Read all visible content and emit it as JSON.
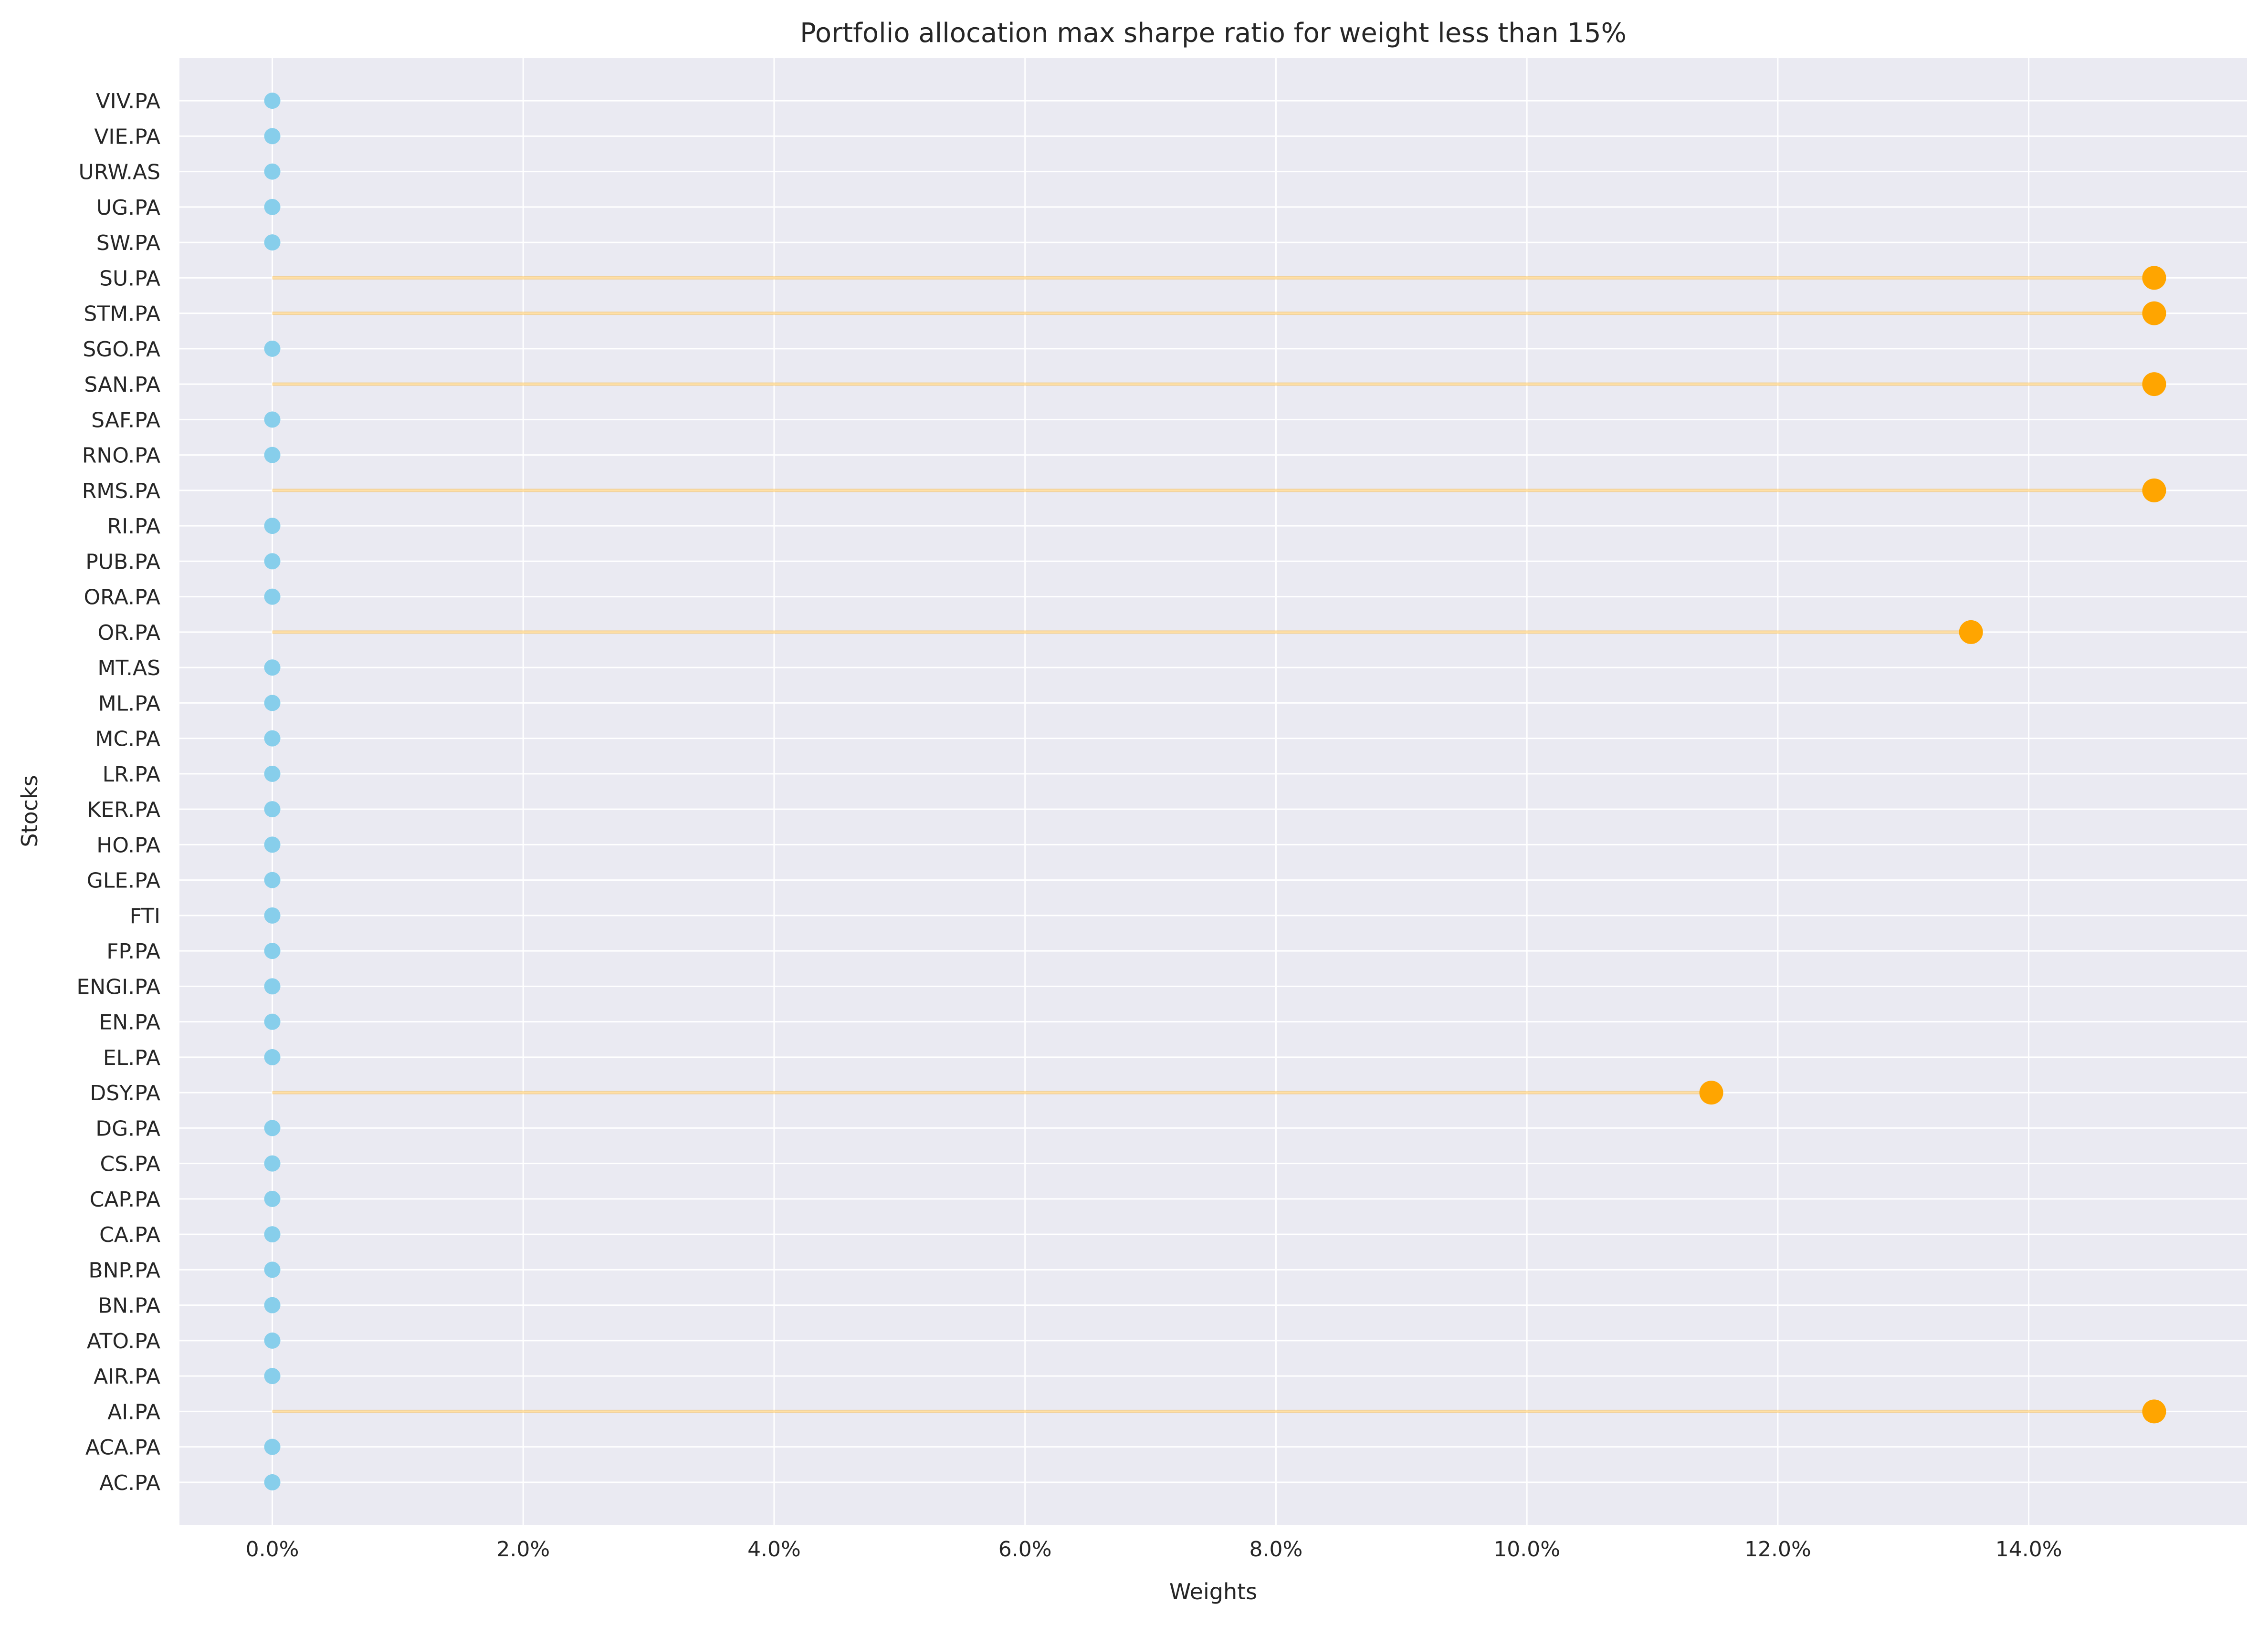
{
  "chart_data": {
    "type": "lollipop",
    "title": "Portfolio allocation max sharpe ratio for weight less than 15%",
    "xlabel": "Weights",
    "ylabel": "Stocks",
    "x_format": "percent",
    "xlim": [
      -0.0074,
      0.1574
    ],
    "x_ticks": [
      0,
      0.02,
      0.04,
      0.06,
      0.08,
      0.1,
      0.12,
      0.14
    ],
    "x_tick_labels": [
      "0.0%",
      "2.0%",
      "4.0%",
      "6.0%",
      "8.0%",
      "10.0%",
      "12.0%",
      "14.0%"
    ],
    "grid": true,
    "background": "#eaeaf2",
    "grid_color": "#ffffff",
    "colors": {
      "zero_marker": "#87ceeb",
      "nonzero_marker": "#ffa500",
      "stem": "#ffa500"
    },
    "categories": [
      "AC.PA",
      "ACA.PA",
      "AI.PA",
      "AIR.PA",
      "ATO.PA",
      "BN.PA",
      "BNP.PA",
      "CA.PA",
      "CAP.PA",
      "CS.PA",
      "DG.PA",
      "DSY.PA",
      "EL.PA",
      "EN.PA",
      "ENGI.PA",
      "FP.PA",
      "FTI",
      "GLE.PA",
      "HO.PA",
      "KER.PA",
      "LR.PA",
      "MC.PA",
      "ML.PA",
      "MT.AS",
      "OR.PA",
      "ORA.PA",
      "PUB.PA",
      "RI.PA",
      "RMS.PA",
      "RNO.PA",
      "SAF.PA",
      "SAN.PA",
      "SGO.PA",
      "STM.PA",
      "SU.PA",
      "SW.PA",
      "UG.PA",
      "URW.AS",
      "VIE.PA",
      "VIV.PA"
    ],
    "values": [
      0,
      0,
      0.15,
      0,
      0,
      0,
      0,
      0,
      0,
      0,
      0,
      0.1147,
      0,
      0,
      0,
      0,
      0,
      0,
      0,
      0,
      0,
      0,
      0,
      0,
      0.1354,
      0,
      0,
      0,
      0.15,
      0,
      0,
      0.15,
      0,
      0.15,
      0.15,
      0,
      0,
      0,
      0,
      0
    ]
  }
}
